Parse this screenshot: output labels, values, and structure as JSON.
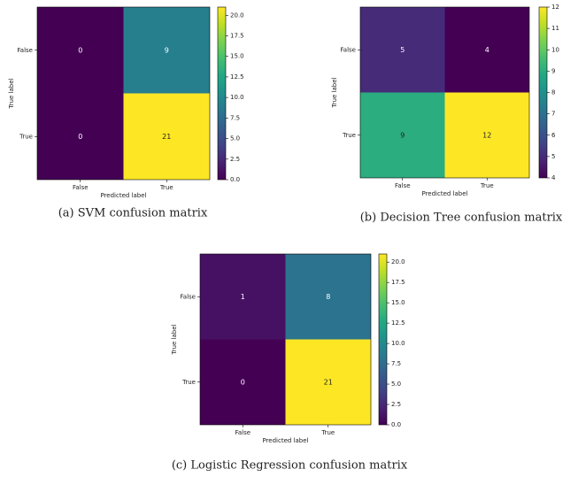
{
  "chart_data": [
    {
      "type": "heatmap",
      "caption": "(a) SVM confusion matrix",
      "xlabel": "Predicted label",
      "ylabel": "True label",
      "x_tick_labels": [
        "False",
        "True"
      ],
      "y_tick_labels": [
        "False",
        "True"
      ],
      "cell_values": [
        [
          0,
          9
        ],
        [
          0,
          21
        ]
      ],
      "colorbar": {
        "min": 0,
        "max": 21,
        "ticks": [
          "0.0",
          "2.5",
          "5.0",
          "7.5",
          "10.0",
          "12.5",
          "15.0",
          "17.5",
          "20.0"
        ]
      },
      "colormap": "viridis"
    },
    {
      "type": "heatmap",
      "caption": "(b) Decision Tree confusion matrix",
      "xlabel": "Predicted label",
      "ylabel": "True label",
      "x_tick_labels": [
        "False",
        "True"
      ],
      "y_tick_labels": [
        "False",
        "True"
      ],
      "cell_values": [
        [
          5,
          4
        ],
        [
          9,
          12
        ]
      ],
      "colorbar": {
        "min": 4,
        "max": 12,
        "ticks": [
          "4",
          "5",
          "6",
          "7",
          "8",
          "9",
          "10",
          "11",
          "12"
        ]
      },
      "colormap": "viridis"
    },
    {
      "type": "heatmap",
      "caption": "(c) Logistic Regression confusion matrix",
      "xlabel": "Predicted label",
      "ylabel": "True label",
      "x_tick_labels": [
        "False",
        "True"
      ],
      "y_tick_labels": [
        "False",
        "True"
      ],
      "cell_values": [
        [
          1,
          8
        ],
        [
          0,
          21
        ]
      ],
      "colorbar": {
        "min": 0,
        "max": 21,
        "ticks": [
          "0.0",
          "2.5",
          "5.0",
          "7.5",
          "10.0",
          "12.5",
          "15.0",
          "17.5",
          "20.0"
        ]
      },
      "colormap": "viridis"
    }
  ],
  "colors": {
    "light_text": "#ffffff",
    "dark_text": "#222222"
  }
}
